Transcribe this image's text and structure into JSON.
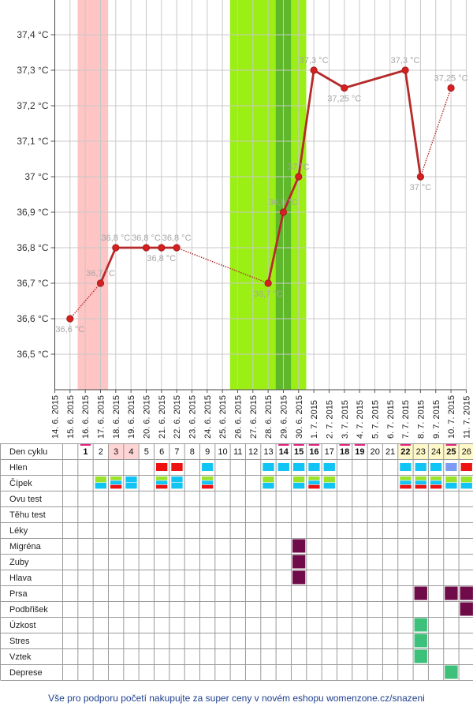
{
  "chart_data": {
    "type": "line",
    "title": "",
    "xlabel": "",
    "ylabel": "",
    "ylim": [
      36.4,
      37.5
    ],
    "yticks": [
      "36,5 °C",
      "36,6 °C",
      "36,7 °C",
      "36,8 °C",
      "36,9 °C",
      "37 °C",
      "37,1 °C",
      "37,2 °C",
      "37,3 °C",
      "37,4 °C"
    ],
    "ytick_values": [
      36.5,
      36.6,
      36.7,
      36.8,
      36.9,
      37.0,
      37.1,
      37.2,
      37.3,
      37.4
    ],
    "dates": [
      "14. 6. 2015",
      "15. 6. 2015",
      "16. 6. 2015",
      "17. 6. 2015",
      "18. 6. 2015",
      "19. 6. 2015",
      "20. 6. 2015",
      "21. 6. 2015",
      "22. 6. 2015",
      "23. 6. 2015",
      "24. 6. 2015",
      "25. 6. 2015",
      "26. 6. 2015",
      "27. 6. 2015",
      "28. 6. 2015",
      "29. 6. 2015",
      "30. 6. 2015",
      "1. 7. 2015",
      "2. 7. 2015",
      "3. 7. 2015",
      "4. 7. 2015",
      "5. 7. 2015",
      "6. 7. 2015",
      "7. 7. 2015",
      "8. 7. 2015",
      "9. 7. 2015",
      "10. 7. 2015",
      "11. 7. 2015"
    ],
    "temperatures": [
      null,
      36.6,
      null,
      36.7,
      36.8,
      null,
      36.8,
      36.8,
      36.8,
      null,
      null,
      null,
      null,
      null,
      36.7,
      36.9,
      37.0,
      37.3,
      null,
      37.25,
      null,
      null,
      null,
      37.3,
      37.0,
      null,
      37.25,
      null
    ],
    "point_labels": [
      null,
      "36,6 °C",
      null,
      "36,7 °C",
      "36,8 °C",
      null,
      "36,8 °C",
      "36,8 °C",
      "36,8 °C",
      null,
      null,
      null,
      null,
      null,
      "36,7 °C",
      "36,9 °C",
      "37 °C",
      "37,3 °C",
      null,
      "37,25 °C",
      null,
      null,
      null,
      "37,3 °C",
      "37 °C",
      null,
      "37,25 °C",
      null
    ],
    "label_below": [
      false,
      true,
      false,
      false,
      false,
      false,
      false,
      true,
      false,
      false,
      false,
      false,
      false,
      false,
      true,
      false,
      false,
      false,
      false,
      true,
      false,
      false,
      false,
      false,
      true,
      false,
      false,
      false
    ],
    "dotted_segments": [
      [
        1,
        3
      ],
      [
        8,
        14
      ],
      [
        24,
        26
      ]
    ],
    "menstruation_range": [
      15.5,
      17.5
    ],
    "fertile_range": [
      25.5,
      30.5
    ],
    "ovulation_range": [
      28.5,
      29.5
    ],
    "grid": true,
    "colors": {
      "line": "#b52a2a",
      "dot": "#d42020",
      "menstruation": "#ffc4c4",
      "fertile": "#9bef14",
      "ovulation": "#5fb72a",
      "grid": "#c8c8c8",
      "point_label": "#a6a6a6"
    }
  },
  "table": {
    "first_day": 14,
    "cycle_label": "Den cyklu",
    "cycle_days": [
      null,
      1,
      2,
      3,
      4,
      5,
      6,
      7,
      8,
      9,
      10,
      11,
      12,
      13,
      14,
      15,
      16,
      17,
      18,
      19,
      20,
      21,
      22,
      23,
      24,
      25,
      26
    ],
    "marked_days": [
      1,
      14,
      15,
      16,
      18,
      19,
      22,
      25
    ],
    "bold_days": [
      1,
      14,
      15,
      16,
      18,
      19,
      22,
      25
    ],
    "period_days": [
      3,
      4
    ],
    "yellow_days": [
      22,
      23,
      24,
      25,
      26
    ],
    "rows": [
      {
        "label": "Hlen",
        "cells": {
          "6": "red",
          "7": "red",
          "9": "blue",
          "13": "blue",
          "14": "blue",
          "15": "blue",
          "16": "blue",
          "17": "blue",
          "22": "blue",
          "23": "blue",
          "24": "blue",
          "25": "lavender",
          "26": "red"
        }
      },
      {
        "label": "Čípek",
        "cells": {
          "2": "gb",
          "3": "gbr",
          "4": "bb",
          "6": "gbr",
          "7": "bb",
          "9": "gbr",
          "13": "gb",
          "15": "gb",
          "16": "gbr",
          "17": "gb",
          "22": "gbr",
          "23": "gbr",
          "24": "gbr",
          "25": "gb",
          "26": "gb"
        }
      },
      {
        "label": "Ovu test",
        "cells": {}
      },
      {
        "label": "Těhu test",
        "cells": {}
      },
      {
        "label": "Léky",
        "cells": {}
      },
      {
        "label": "Migréna",
        "cells": {
          "15": "purple"
        }
      },
      {
        "label": "Zuby",
        "cells": {
          "15": "purple"
        }
      },
      {
        "label": "Hlava",
        "cells": {
          "15": "purple"
        }
      },
      {
        "label": "Prsa",
        "cells": {
          "23": "purple",
          "25": "purple",
          "26": "purple"
        }
      },
      {
        "label": "Podbřišek",
        "cells": {
          "26": "purple"
        }
      },
      {
        "label": "Úzkost",
        "cells": {
          "23": "teal"
        }
      },
      {
        "label": "Stres",
        "cells": {
          "23": "teal"
        }
      },
      {
        "label": "Vztek",
        "cells": {
          "23": "teal"
        }
      },
      {
        "label": "Deprese",
        "cells": {
          "25": "teal"
        }
      }
    ],
    "colors": {
      "red": "#ee1111",
      "blue": "#12c4f4",
      "green": "#99e32b",
      "lavender": "#7b9cf2",
      "purple": "#6e0b48",
      "teal": "#3cc07a",
      "marker": "#e0237f",
      "period_bg": "#ffd4d4",
      "yellow_bg": "#fff8c8",
      "border": "#9a9a9a"
    }
  },
  "footer": {
    "text": "Vše pro podporu početí nakupujte za super ceny v novém eshopu womenzone.cz/snazeni"
  }
}
